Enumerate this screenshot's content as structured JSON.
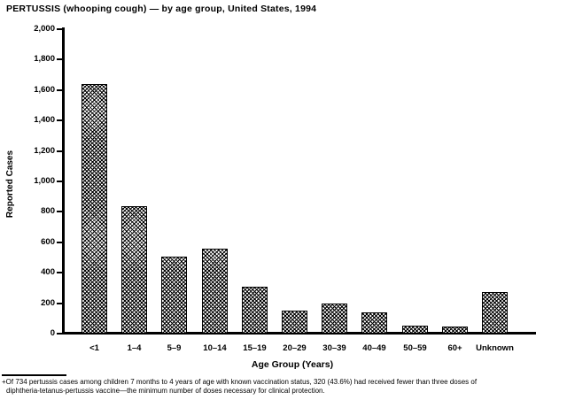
{
  "figure": {
    "title": "PERTUSSIS (whooping cough) — by age group, United States, 1994"
  },
  "chart_data": {
    "type": "bar",
    "title": "PERTUSSIS (whooping cough) — by age group, United States, 1994",
    "xlabel": "Age Group (Years)",
    "ylabel": "Reported Cases",
    "categories": [
      "<1",
      "1–4",
      "5–9",
      "10–14",
      "15–19",
      "20–29",
      "30–39",
      "40–49",
      "50–59",
      "60+",
      "Unknown"
    ],
    "values": [
      1640,
      840,
      505,
      560,
      310,
      150,
      195,
      140,
      55,
      45,
      275
    ],
    "ylim": [
      0,
      2000
    ],
    "ytick_interval": 200,
    "ytick_labels": [
      "0",
      "200",
      "400",
      "600",
      "800",
      "1,000",
      "1,200",
      "1,400",
      "1,600",
      "1,800",
      "2,000"
    ],
    "grid": false,
    "legend": null,
    "bar_style": {
      "fill": "diagonal-crosshatch",
      "fill_color": "#000000",
      "border_color": "#000000",
      "background": "#ffffff"
    }
  },
  "footnote": {
    "marker": "+",
    "line1": "Of 734 pertussis cases among children 7 months to 4 years of age with known vaccination status, 320 (43.6%) had received fewer than three doses of",
    "line2": "diphtheria-tetanus-pertussis vaccine—the minimum number of doses necessary for clinical protection."
  }
}
